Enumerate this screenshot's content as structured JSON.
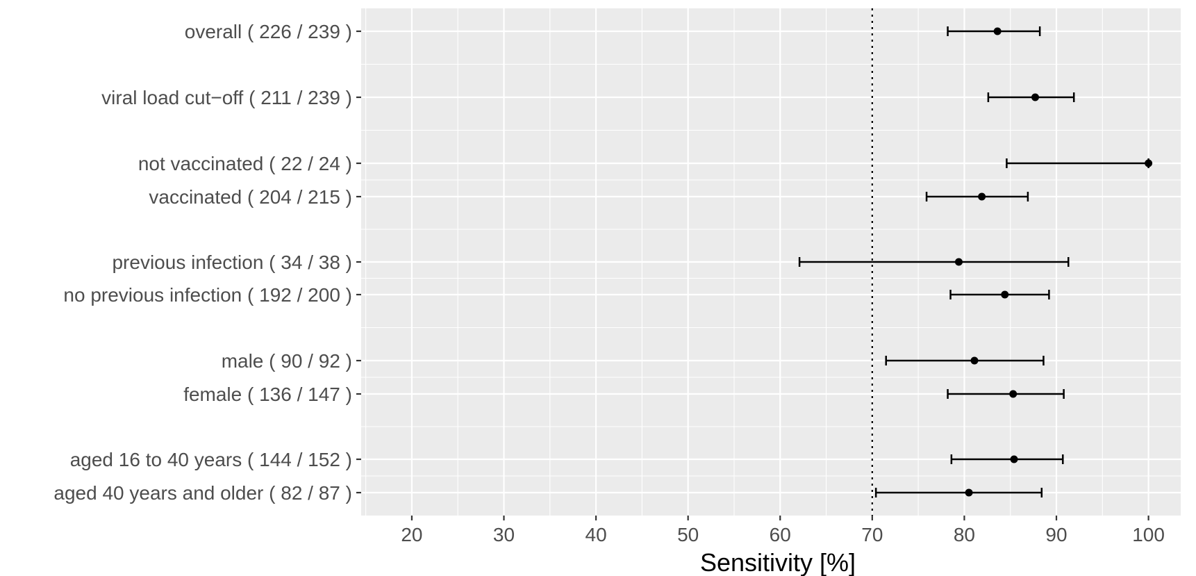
{
  "chart_data": {
    "type": "forest",
    "title": "",
    "xlabel": "Sensitivity [%]",
    "ylabel": "",
    "xlim": [
      14.5,
      103.5
    ],
    "x_ticks": [
      20,
      30,
      40,
      50,
      60,
      70,
      80,
      90,
      100
    ],
    "x_minor_ticks": [
      15,
      25,
      35,
      45,
      55,
      65,
      75,
      85,
      95
    ],
    "reference_line": 70,
    "grid": true,
    "legend": "none",
    "rows": [
      {
        "label": "overall ( 226 / 239 )",
        "estimate": 83.6,
        "lower": 78.2,
        "upper": 88.2
      },
      {
        "label": "viral load cut−off ( 211 / 239 )",
        "estimate": 87.7,
        "lower": 82.6,
        "upper": 91.9
      },
      {
        "label": "not vaccinated ( 22 / 24 )",
        "estimate": 100,
        "lower": 84.6,
        "upper": 100
      },
      {
        "label": "vaccinated ( 204 / 215 )",
        "estimate": 81.9,
        "lower": 75.9,
        "upper": 86.9
      },
      {
        "label": "previous infection ( 34 / 38 )",
        "estimate": 79.4,
        "lower": 62.1,
        "upper": 91.3
      },
      {
        "label": "no previous infection ( 192 / 200 )",
        "estimate": 84.4,
        "lower": 78.5,
        "upper": 89.2
      },
      {
        "label": "male ( 90 / 92 )",
        "estimate": 81.1,
        "lower": 71.5,
        "upper": 88.6
      },
      {
        "label": "female ( 136 / 147 )",
        "estimate": 85.3,
        "lower": 78.2,
        "upper": 90.8
      },
      {
        "label": "aged 16 to 40 years ( 144 / 152 )",
        "estimate": 85.4,
        "lower": 78.6,
        "upper": 90.7
      },
      {
        "label": "aged 40 years and older ( 82 / 87 )",
        "estimate": 80.5,
        "lower": 70.4,
        "upper": 88.4
      }
    ]
  }
}
